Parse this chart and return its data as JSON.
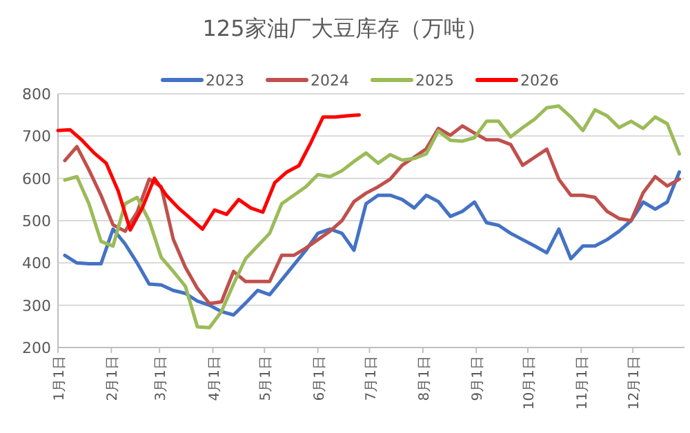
{
  "chart_data": {
    "type": "line",
    "title": "125家油厂大豆库存（万吨）",
    "x": [
      "--01-05",
      "--01-12",
      "--01-19",
      "--01-26",
      "--02-02",
      "--02-09",
      "--02-16",
      "--02-23",
      "--03-02",
      "--03-09",
      "--03-16",
      "--03-23",
      "--03-30",
      "--04-06",
      "--04-13",
      "--04-20",
      "--04-27",
      "--05-04",
      "--05-11",
      "--05-18",
      "--05-25",
      "--06-01",
      "--06-08",
      "--06-15",
      "--06-22",
      "--06-29",
      "--07-06",
      "--07-13",
      "--07-20",
      "--07-27",
      "--08-03",
      "--08-10",
      "--08-17",
      "--08-24",
      "--08-31",
      "--09-07",
      "--09-14",
      "--09-21",
      "--09-28",
      "--10-05",
      "--10-12",
      "--10-19",
      "--10-26",
      "--11-02",
      "--11-09",
      "--11-16",
      "--11-23",
      "--11-30",
      "--12-07",
      "--12-14",
      "--12-21",
      "--12-28"
    ],
    "series": [
      {
        "name": "2023",
        "color": "#4472c4",
        "values": [
          418,
          400,
          398,
          398,
          480,
          445,
          400,
          350,
          348,
          335,
          328,
          310,
          300,
          285,
          277,
          305,
          335,
          325,
          360,
          395,
          430,
          470,
          480,
          470,
          430,
          540,
          560,
          560,
          550,
          530,
          560,
          545,
          510,
          522,
          544,
          495,
          489,
          470,
          455,
          440,
          424,
          480,
          410,
          440,
          440,
          455,
          475,
          500,
          544,
          527,
          544,
          615
        ]
      },
      {
        "name": "2024",
        "color": "#c0504d",
        "values": [
          642,
          675,
          620,
          560,
          490,
          475,
          520,
          598,
          580,
          456,
          390,
          340,
          304,
          308,
          380,
          356,
          356,
          356,
          418,
          418,
          435,
          455,
          475,
          500,
          545,
          565,
          580,
          598,
          631,
          650,
          670,
          718,
          702,
          724,
          707,
          691,
          691,
          680,
          631,
          650,
          669,
          598,
          560,
          560,
          555,
          522,
          505,
          500,
          566,
          604,
          582,
          598
        ]
      },
      {
        "name": "2025",
        "color": "#9bbb59",
        "values": [
          596,
          604,
          540,
          451,
          440,
          540,
          555,
          500,
          413,
          380,
          345,
          249,
          247,
          285,
          350,
          410,
          440,
          470,
          540,
          560,
          580,
          609,
          604,
          618,
          640,
          660,
          636,
          656,
          643,
          647,
          658,
          712,
          690,
          688,
          696,
          735,
          735,
          698,
          720,
          740,
          767,
          771,
          745,
          713,
          762,
          748,
          720,
          735,
          718,
          745,
          729,
          658
        ]
      },
      {
        "name": "2026",
        "color": "#ff0000",
        "x": [
          "--01-01",
          "--01-08",
          "--01-15",
          "--01-22",
          "--01-29",
          "--02-05",
          "--02-12",
          "--02-19",
          "--02-26",
          "--03-05",
          "--03-12",
          "--03-19",
          "--03-26",
          "--04-02",
          "--04-09",
          "--04-16",
          "--04-23",
          "--04-30",
          "--05-07",
          "--05-14",
          "--05-21",
          "--05-28",
          "--06-04",
          "--06-11",
          "--06-18",
          "--06-25"
        ],
        "values": [
          713,
          715,
          690,
          660,
          636,
          570,
          478,
          530,
          600,
          560,
          530,
          505,
          480,
          525,
          515,
          550,
          530,
          520,
          590,
          615,
          630,
          685,
          745,
          745,
          748,
          750
        ]
      }
    ],
    "xlim": [
      "--01-01",
      "--12-31"
    ],
    "xticks": [
      {
        "value": "--01-01",
        "label": "1月1日"
      },
      {
        "value": "--02-01",
        "label": "2月1日"
      },
      {
        "value": "--03-01",
        "label": "3月1日"
      },
      {
        "value": "--04-01",
        "label": "4月1日"
      },
      {
        "value": "--05-01",
        "label": "5月1日"
      },
      {
        "value": "--06-01",
        "label": "6月1日"
      },
      {
        "value": "--07-01",
        "label": "7月1日"
      },
      {
        "value": "--08-01",
        "label": "8月1日"
      },
      {
        "value": "--09-01",
        "label": "9月1日"
      },
      {
        "value": "--10-01",
        "label": "10月1日"
      },
      {
        "value": "--11-01",
        "label": "11月1日"
      },
      {
        "value": "--12-01",
        "label": "12月1日"
      }
    ],
    "ylim": [
      200,
      800
    ],
    "yticks": [
      200,
      300,
      400,
      500,
      600,
      700,
      800
    ],
    "grid": "y",
    "legend": "top",
    "marker": "none",
    "line_style": "solid"
  }
}
